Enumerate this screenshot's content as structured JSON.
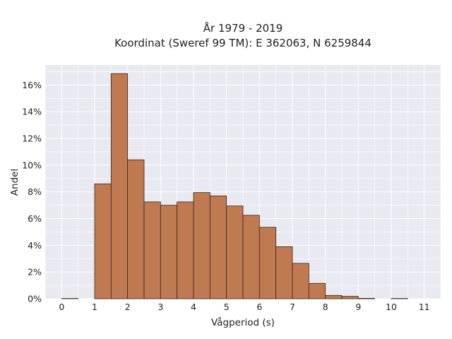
{
  "chart_data": {
    "type": "bar",
    "title": "År 1979 - 2019",
    "subtitle": "Koordinat (Sweref 99 TM): E 362063, N 6259844",
    "xlabel": "Vågperiod (s)",
    "ylabel": "Andel",
    "xlim": [
      -0.5,
      11.5
    ],
    "ylim": [
      0,
      17.5
    ],
    "xticks": [
      "0",
      "1",
      "2",
      "3",
      "4",
      "5",
      "6",
      "7",
      "8",
      "9",
      "10",
      "11"
    ],
    "yticks": [
      "0%",
      "2%",
      "4%",
      "6%",
      "8%",
      "10%",
      "12%",
      "14%",
      "16%"
    ],
    "bin_width": 0.5,
    "bin_starts": [
      0,
      0.5,
      1,
      1.5,
      2,
      2.5,
      3,
      3.5,
      4,
      4.5,
      5,
      5.5,
      6,
      6.5,
      7,
      7.5,
      8,
      8.5,
      9,
      9.5,
      10,
      10.5
    ],
    "values": [
      0.02,
      0,
      8.6,
      16.85,
      10.4,
      7.25,
      7.0,
      7.25,
      7.95,
      7.7,
      6.95,
      6.25,
      5.35,
      3.9,
      2.65,
      1.15,
      0.25,
      0.18,
      0.03,
      0,
      0.02,
      0
    ],
    "grid": true,
    "legend": "none",
    "colors": {
      "bar": "#c07a52",
      "bar_edge": "#3a2418",
      "background": "#e9e9f1",
      "grid": "#ffffff"
    }
  }
}
